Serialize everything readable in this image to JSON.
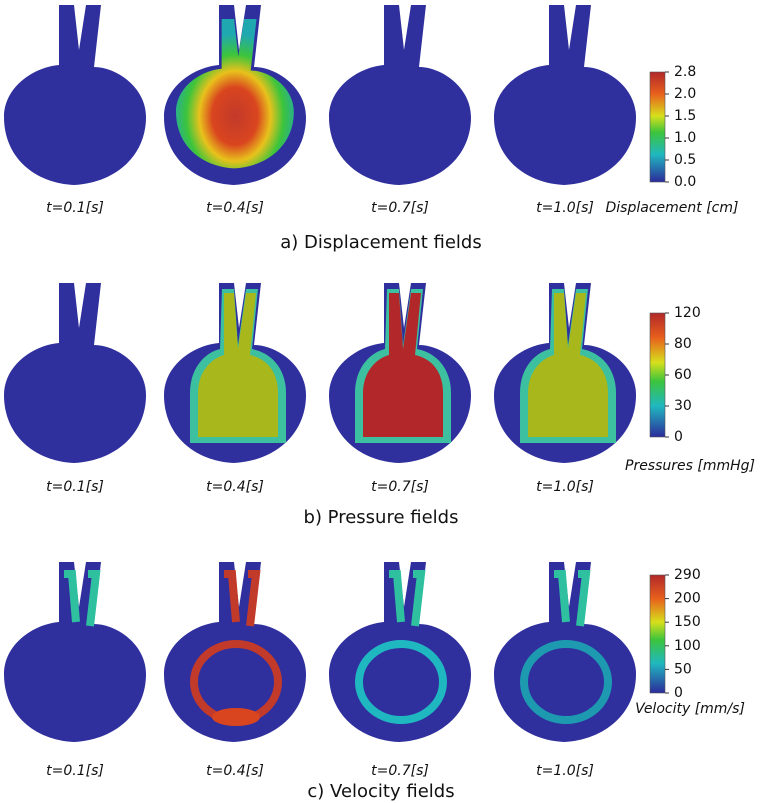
{
  "panels": [
    {
      "times": [
        "t=0.1[s]",
        "t=0.4[s]",
        "t=0.7[s]",
        "t=1.0[s]"
      ],
      "colorbar_title": "Displacement [cm]",
      "colorbar_ticks": [
        "2.8",
        "2.0",
        "1.5",
        "1.0",
        "0.5",
        "0.0"
      ],
      "caption": "a) Displacement fields"
    },
    {
      "times": [
        "t=0.1[s]",
        "t=0.4[s]",
        "t=0.7[s]",
        "t=1.0[s]"
      ],
      "colorbar_title": "Pressures [mmHg]",
      "colorbar_ticks": [
        "120",
        "80",
        "60",
        "30",
        "0"
      ],
      "caption": "b) Pressure fields"
    },
    {
      "times": [
        "t=0.1[s]",
        "t=0.4[s]",
        "t=0.7[s]",
        "t=1.0[s]"
      ],
      "colorbar_title": "Velocity [mm/s]",
      "colorbar_ticks": [
        "290",
        "200",
        "150",
        "100",
        "50",
        "0"
      ],
      "caption": "c) Velocity fields"
    }
  ]
}
